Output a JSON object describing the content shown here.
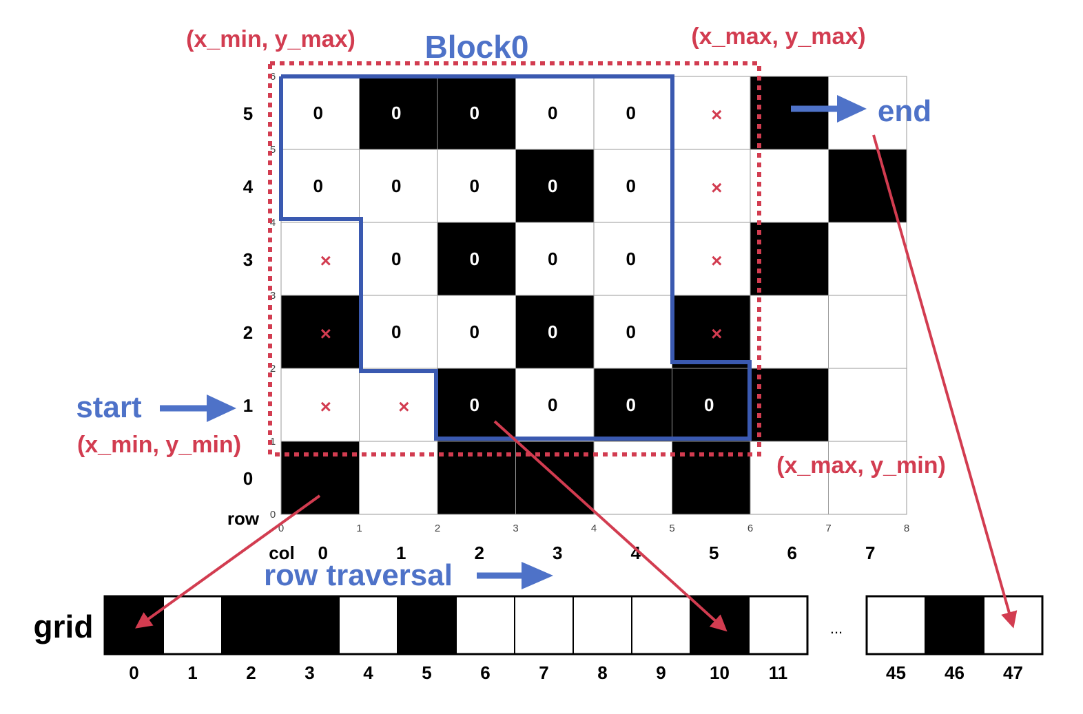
{
  "labels": {
    "x_min_y_max": "(x_min, y_max)",
    "x_max_y_max": "(x_max, y_max)",
    "x_min_y_min": "(x_min, y_min)",
    "x_max_y_min": "(x_max, y_min)",
    "block": "Block0",
    "start": "start",
    "end": "end",
    "row_traversal": "row traversal",
    "grid": "grid",
    "row_axis": "row",
    "col_axis": "col",
    "ellipsis": "..."
  },
  "grid_cols": 8,
  "grid_rows": 6,
  "row_labels": [
    "0",
    "1",
    "2",
    "3",
    "4",
    "5"
  ],
  "col_labels": [
    "0",
    "1",
    "2",
    "3",
    "4",
    "5",
    "6",
    "7"
  ],
  "x_ticks": [
    "0",
    "1",
    "2",
    "3",
    "4",
    "5",
    "6",
    "7",
    "8"
  ],
  "y_ticks": [
    "0",
    "1",
    "2",
    "3",
    "4",
    "5",
    "6"
  ],
  "black_cells_rows_top_to_bottom": [
    [
      0,
      1,
      1,
      0,
      0,
      0,
      1,
      0
    ],
    [
      0,
      0,
      0,
      1,
      0,
      0,
      0,
      1
    ],
    [
      0,
      0,
      1,
      0,
      0,
      0,
      1,
      0
    ],
    [
      1,
      0,
      0,
      1,
      0,
      1,
      0,
      0
    ],
    [
      0,
      0,
      1,
      0,
      1,
      1,
      1,
      0
    ],
    [
      1,
      0,
      1,
      1,
      0,
      1,
      0,
      0
    ]
  ],
  "cell_marks": [
    {
      "row": 5,
      "col": 0,
      "mark": "0"
    },
    {
      "row": 5,
      "col": 1,
      "mark": "0"
    },
    {
      "row": 5,
      "col": 2,
      "mark": "0"
    },
    {
      "row": 5,
      "col": 3,
      "mark": "0"
    },
    {
      "row": 5,
      "col": 4,
      "mark": "0"
    },
    {
      "row": 5,
      "col": 5,
      "mark": "×"
    },
    {
      "row": 4,
      "col": 0,
      "mark": "0"
    },
    {
      "row": 4,
      "col": 1,
      "mark": "0"
    },
    {
      "row": 4,
      "col": 2,
      "mark": "0"
    },
    {
      "row": 4,
      "col": 3,
      "mark": "0"
    },
    {
      "row": 4,
      "col": 4,
      "mark": "0"
    },
    {
      "row": 4,
      "col": 5,
      "mark": "×"
    },
    {
      "row": 3,
      "col": 0,
      "mark": "×"
    },
    {
      "row": 3,
      "col": 1,
      "mark": "0"
    },
    {
      "row": 3,
      "col": 2,
      "mark": "0"
    },
    {
      "row": 3,
      "col": 3,
      "mark": "0"
    },
    {
      "row": 3,
      "col": 4,
      "mark": "0"
    },
    {
      "row": 3,
      "col": 5,
      "mark": "×"
    },
    {
      "row": 2,
      "col": 0,
      "mark": "×"
    },
    {
      "row": 2,
      "col": 1,
      "mark": "0"
    },
    {
      "row": 2,
      "col": 2,
      "mark": "0"
    },
    {
      "row": 2,
      "col": 3,
      "mark": "0"
    },
    {
      "row": 2,
      "col": 4,
      "mark": "0"
    },
    {
      "row": 2,
      "col": 5,
      "mark": "×"
    },
    {
      "row": 1,
      "col": 0,
      "mark": "×"
    },
    {
      "row": 1,
      "col": 1,
      "mark": "×"
    },
    {
      "row": 1,
      "col": 2,
      "mark": "0"
    },
    {
      "row": 1,
      "col": 3,
      "mark": "0"
    },
    {
      "row": 1,
      "col": 4,
      "mark": "0"
    },
    {
      "row": 1,
      "col": 5,
      "mark": "0"
    }
  ],
  "array_groups": [
    {
      "indices": [
        "0",
        "1",
        "2",
        "3",
        "4",
        "5",
        "6",
        "7",
        "8",
        "9",
        "10",
        "11"
      ],
      "black": [
        1,
        0,
        1,
        1,
        0,
        1,
        0,
        0,
        0,
        0,
        1,
        0
      ]
    },
    {
      "indices": [
        "45",
        "46",
        "47"
      ],
      "black": [
        0,
        1,
        0
      ]
    }
  ],
  "colors": {
    "red": "#d23c50",
    "blue": "#4e72c8",
    "block_outline": "#3a59b0",
    "black": "#000000",
    "white": "#ffffff"
  }
}
